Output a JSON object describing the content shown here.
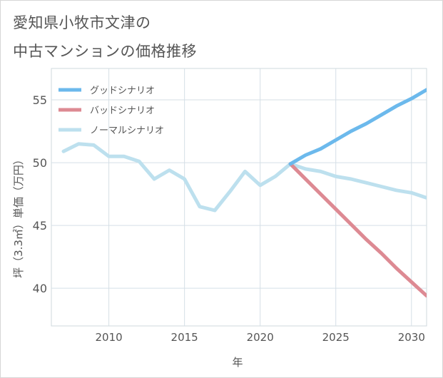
{
  "title_lines": [
    "愛知県小牧市文津の",
    "中古マンションの価格推移"
  ],
  "chart_data": {
    "type": "line",
    "title": "愛知県小牧市文津の中古マンションの価格推移",
    "xlabel": "年",
    "ylabel": "坪（3.3㎡）単価（万円）",
    "xlim": [
      2006.2,
      2031
    ],
    "ylim": [
      37,
      57.5
    ],
    "xticks": [
      2010,
      2015,
      2020,
      2025,
      2030
    ],
    "yticks": [
      40,
      45,
      50,
      55
    ],
    "grid": true,
    "legend_position": "top-left",
    "series": [
      {
        "name": "グッドシナリオ",
        "color": "#6cb9ec",
        "x": [
          2022,
          2023,
          2024,
          2025,
          2026,
          2027,
          2028,
          2029,
          2030,
          2031
        ],
        "y": [
          49.9,
          50.6,
          51.1,
          51.8,
          52.5,
          53.1,
          53.8,
          54.5,
          55.1,
          55.8
        ]
      },
      {
        "name": "バッドシナリオ",
        "color": "#dd8a93",
        "x": [
          2022,
          2023,
          2024,
          2025,
          2026,
          2027,
          2028,
          2029,
          2030,
          2031
        ],
        "y": [
          49.9,
          48.7,
          47.5,
          46.3,
          45.1,
          43.9,
          42.8,
          41.6,
          40.5,
          39.4
        ]
      },
      {
        "name": "ノーマルシナリオ",
        "color": "#bde0ee",
        "x": [
          2007,
          2008,
          2009,
          2010,
          2011,
          2012,
          2013,
          2014,
          2015,
          2016,
          2017,
          2018,
          2019,
          2020,
          2021,
          2022,
          2023,
          2024,
          2025,
          2026,
          2027,
          2028,
          2029,
          2030,
          2031
        ],
        "y": [
          50.9,
          51.5,
          51.4,
          50.5,
          50.5,
          50.1,
          48.7,
          49.4,
          48.7,
          46.5,
          46.2,
          47.7,
          49.3,
          48.2,
          48.9,
          49.9,
          49.5,
          49.3,
          48.9,
          48.7,
          48.4,
          48.1,
          47.8,
          47.6,
          47.2
        ]
      }
    ]
  }
}
